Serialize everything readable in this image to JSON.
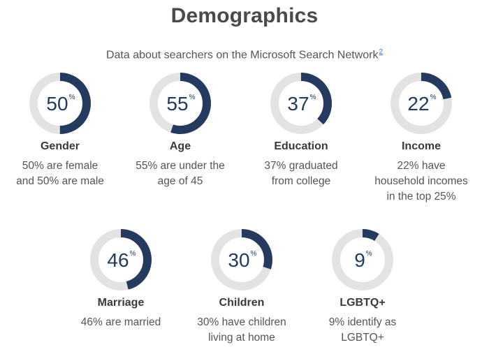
{
  "header": {
    "title": "Demographics",
    "subtitle": "Data about searchers on the Microsoft Search Network",
    "footnote": "2"
  },
  "colors": {
    "accent": "#243a5e",
    "track": "#e3e3e3"
  },
  "chart_data": {
    "type": "donut",
    "title": "Demographics",
    "subtitle": "Data about searchers on the Microsoft Search Network",
    "unit": "%",
    "items": [
      {
        "label": "Gender",
        "value": 50,
        "desc": [
          "50% are female",
          "and 50% are male"
        ]
      },
      {
        "label": "Age",
        "value": 55,
        "desc": [
          "55% are under the",
          "age of 45"
        ]
      },
      {
        "label": "Education",
        "value": 37,
        "desc": [
          "37% graduated",
          "from college"
        ]
      },
      {
        "label": "Income",
        "value": 22,
        "desc": [
          "22% have",
          "household incomes",
          "in the top 25%"
        ]
      },
      {
        "label": "Marriage",
        "value": 46,
        "desc": [
          "46% are married"
        ]
      },
      {
        "label": "Children",
        "value": 30,
        "desc": [
          "30% have children",
          "living at home"
        ]
      },
      {
        "label": "LGBTQ+",
        "value": 9,
        "desc": [
          "9% identify as",
          "LGBTQ+"
        ]
      }
    ]
  }
}
